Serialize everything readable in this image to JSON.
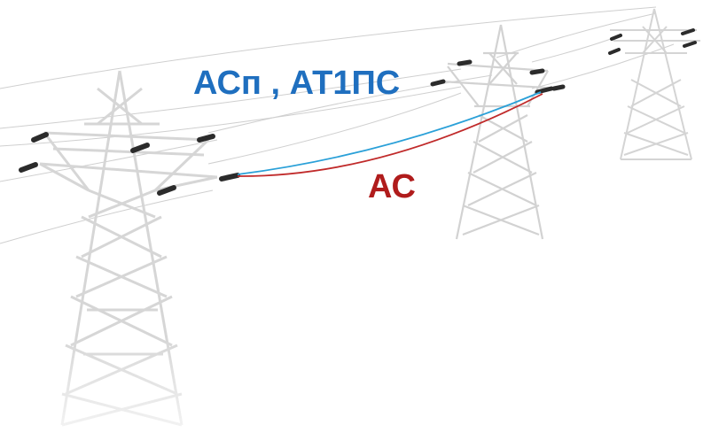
{
  "labels": {
    "upper_wire": "АСп , АТ1ПС",
    "lower_wire": "АС"
  },
  "colors": {
    "upper_wire": "#1f6fbf",
    "lower_wire": "#b01c1c",
    "upper_wire_line": "#2aa0d8",
    "lower_wire_line": "#c02a2a",
    "tower": "#d4d4d4",
    "tower_dark": "#bdbdbd",
    "insulator": "#2b2b2b",
    "overhead_wire": "#c8c8c8"
  }
}
